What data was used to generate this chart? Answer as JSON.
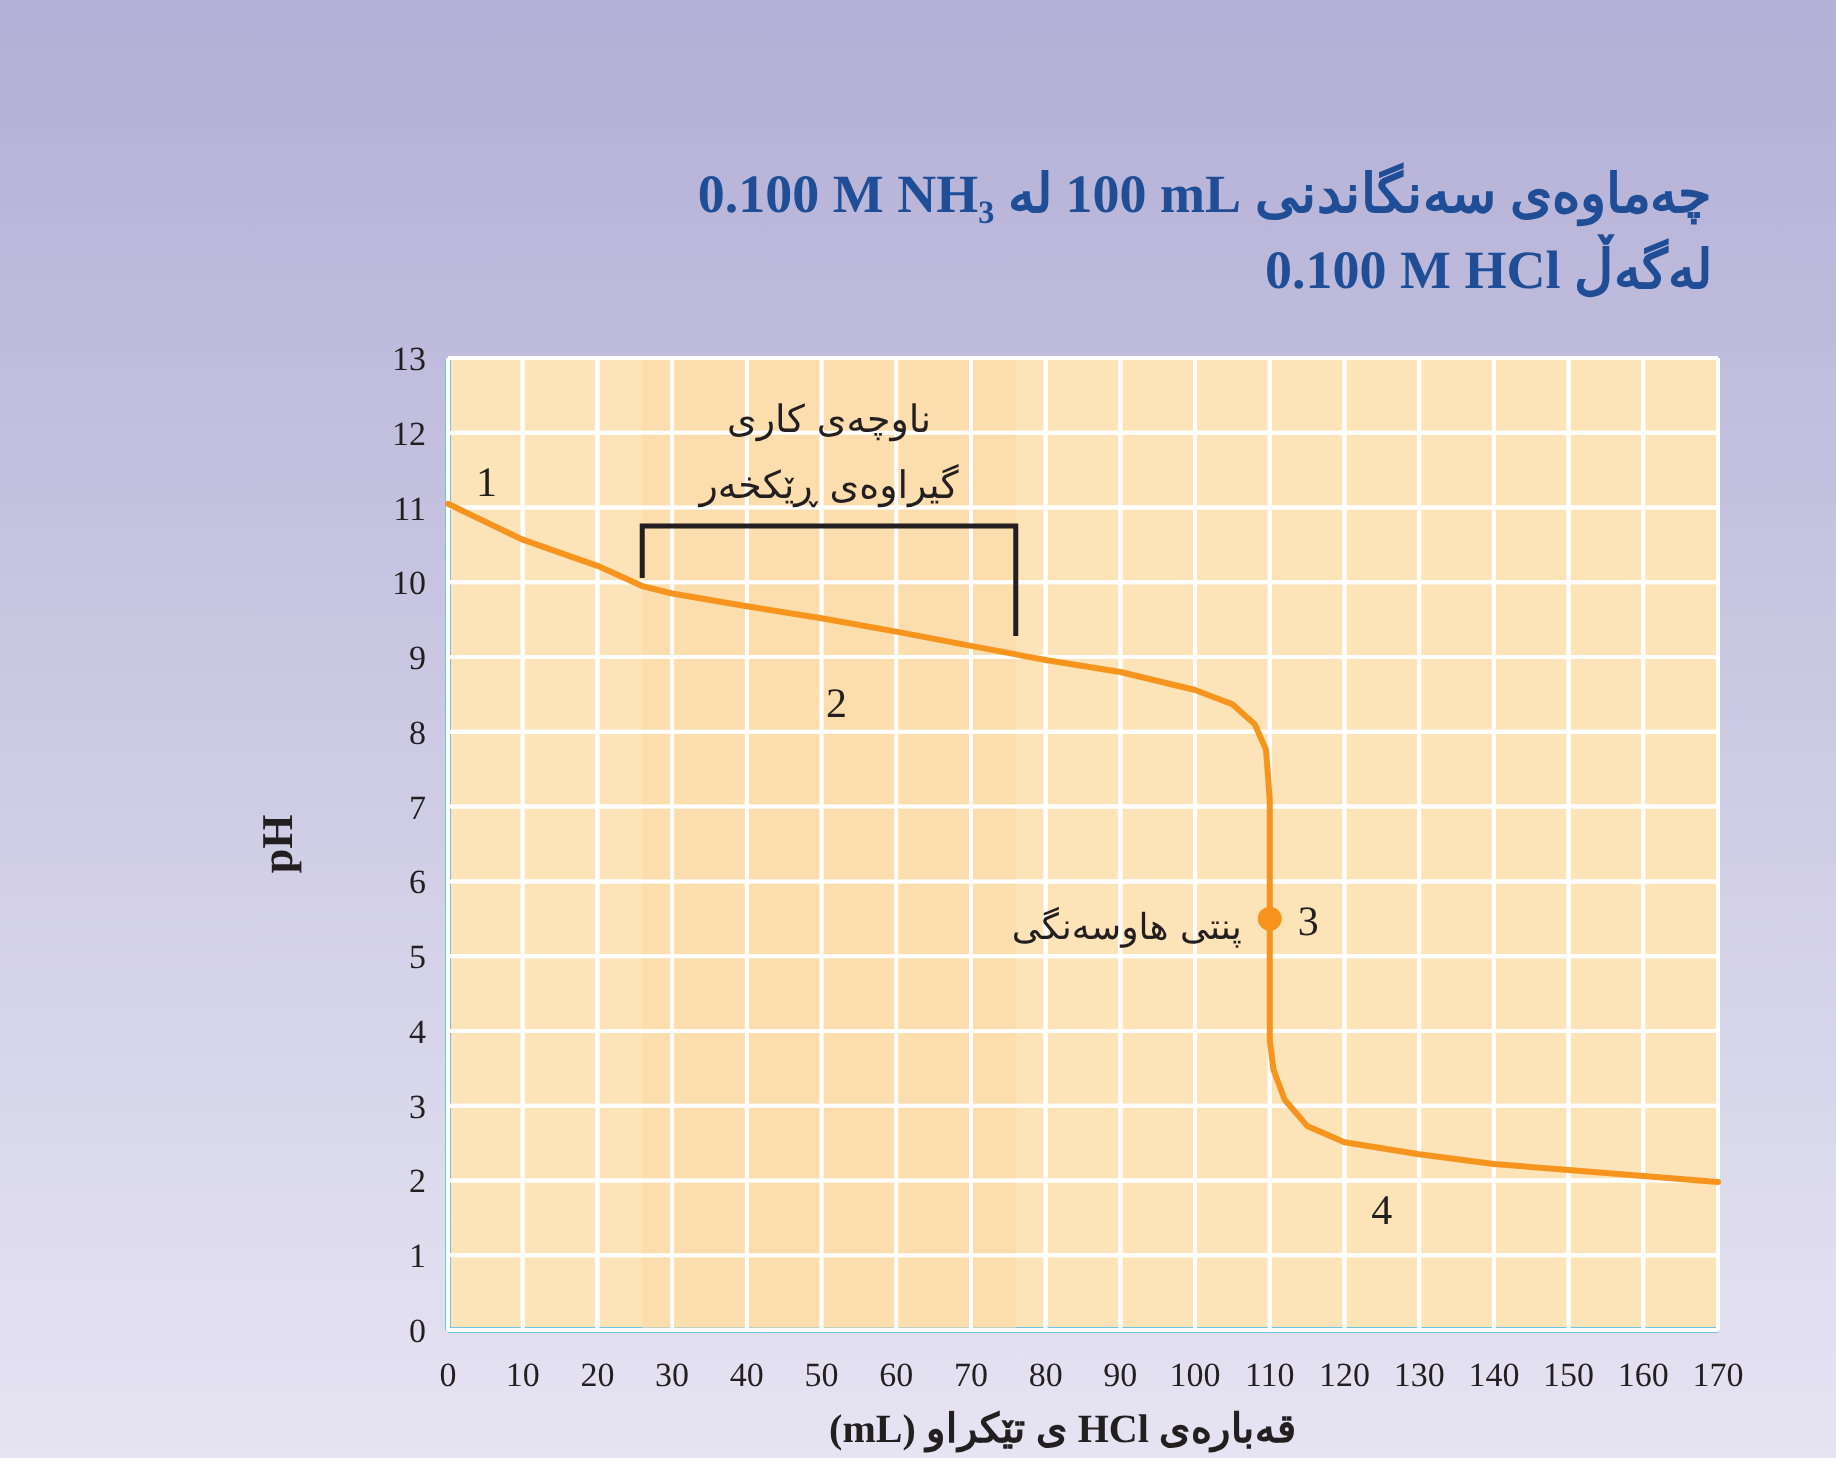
{
  "chart_data": {
    "type": "line",
    "title": "چەماوەی سەنگاندنی 100 mL لە 0.100 M NH₃\nلەگەڵ 0.100 M HCl",
    "xlabel": "قەبارەی HCl ی تێکراو (mL)",
    "ylabel": "pH",
    "series": [
      {
        "color": "#f7941d",
        "x": [
          0,
          10,
          20,
          26,
          30,
          40,
          50,
          60,
          70,
          80,
          90,
          100,
          105,
          108,
          109.5,
          110,
          110,
          110,
          110.5,
          112,
          115,
          120,
          130,
          140,
          150,
          160,
          170
        ],
        "values": [
          11.05,
          10.57,
          10.22,
          9.95,
          9.85,
          9.68,
          9.52,
          9.34,
          9.15,
          8.96,
          8.8,
          8.56,
          8.37,
          8.1,
          7.76,
          7.09,
          5.54,
          3.88,
          3.48,
          3.08,
          2.73,
          2.51,
          2.35,
          2.22,
          2.14,
          2.06,
          1.98
        ]
      },
      {
        "type": "scatter",
        "color": "#f7941d",
        "x": [
          110
        ],
        "values": [
          5.5
        ]
      }
    ],
    "xlim": [
      0,
      170
    ],
    "ylim": [
      0,
      13
    ],
    "xticks": [
      0,
      10,
      20,
      30,
      40,
      50,
      60,
      70,
      80,
      90,
      100,
      110,
      120,
      130,
      140,
      150,
      160,
      170
    ],
    "yticks": [
      0,
      1,
      2,
      3,
      4,
      5,
      6,
      7,
      8,
      9,
      10,
      11,
      12,
      13
    ],
    "grid": true,
    "bands": [
      {
        "axis": "x",
        "from": 26,
        "to": 76,
        "color": "#fbd9a6",
        "label": "ناوچەی کاری\nگیراوەی ڕێکخەر"
      }
    ],
    "annotations": [
      {
        "text": "1",
        "x": 0,
        "y": 11.05
      },
      {
        "text": "2",
        "x": 52,
        "y": 9.48
      },
      {
        "text": "پنتی هاوسەنگی",
        "x": 110,
        "y": 5.5
      },
      {
        "text": "3",
        "x": 110,
        "y": 5.5
      },
      {
        "text": "4",
        "x": 125,
        "y": 2.43
      }
    ]
  }
}
